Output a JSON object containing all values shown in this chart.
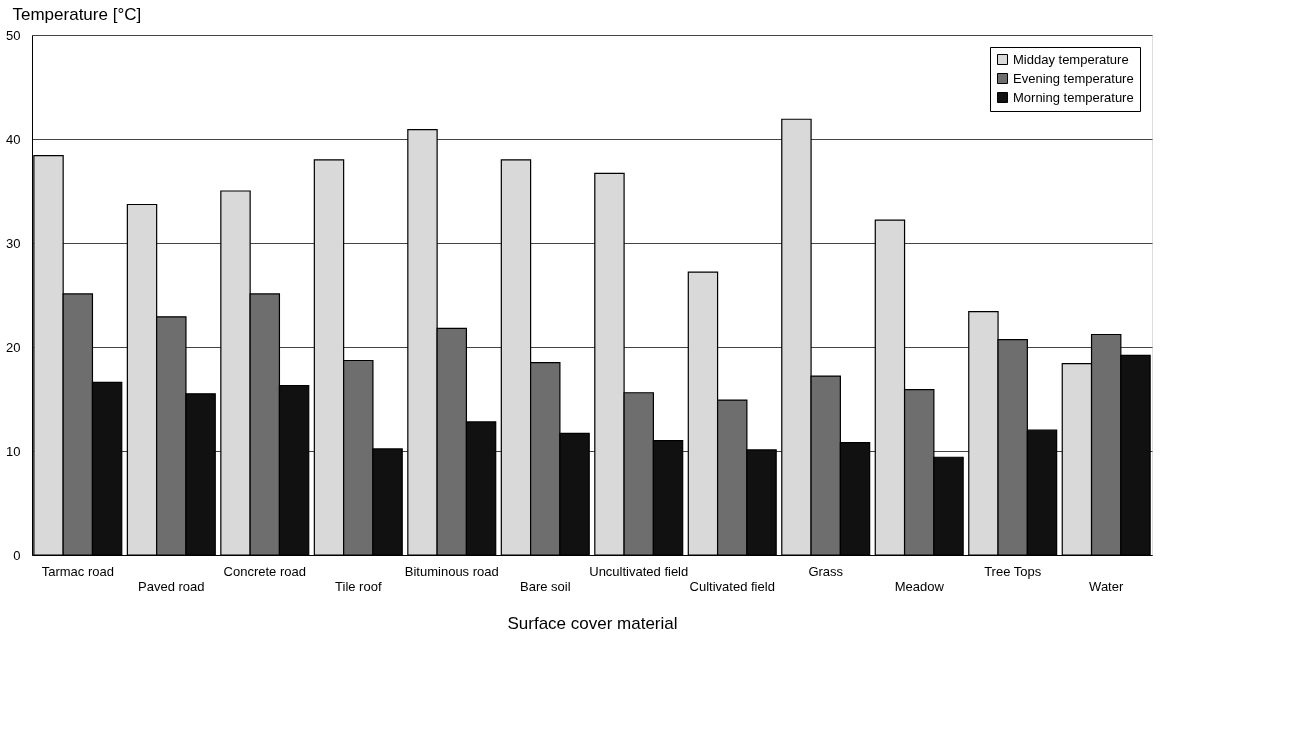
{
  "chart_data": {
    "type": "bar",
    "xlabel": "Surface cover material",
    "ylabel": "Temperature [°C]",
    "categories": [
      "Tarmac road",
      "Paved road",
      "Concrete road",
      "Tile roof",
      "Bituminous road",
      "Bare soil",
      "Uncultivated field",
      "Cultivated field",
      "Grass",
      "Meadow",
      "Tree Tops",
      "Water"
    ],
    "series": [
      {
        "name": "Midday temperature",
        "color": "#d9d9d9",
        "values": [
          38.4,
          33.7,
          35.0,
          38.0,
          40.9,
          38.0,
          36.7,
          27.2,
          41.9,
          32.2,
          23.4,
          18.4
        ]
      },
      {
        "name": "Evening temperature",
        "color": "#6e6e6e",
        "values": [
          25.1,
          22.9,
          25.1,
          18.7,
          21.8,
          18.5,
          15.6,
          14.9,
          17.2,
          15.9,
          20.7,
          21.2
        ]
      },
      {
        "name": "Morning temperature",
        "color": "#111111",
        "values": [
          16.6,
          15.5,
          16.3,
          10.2,
          12.8,
          11.7,
          11.0,
          10.1,
          10.8,
          9.4,
          12.0,
          19.2
        ]
      }
    ],
    "ylim": [
      0,
      50
    ],
    "yticks": [
      0,
      10,
      20,
      30,
      40,
      50
    ],
    "grid": "y",
    "legend": "top right"
  }
}
